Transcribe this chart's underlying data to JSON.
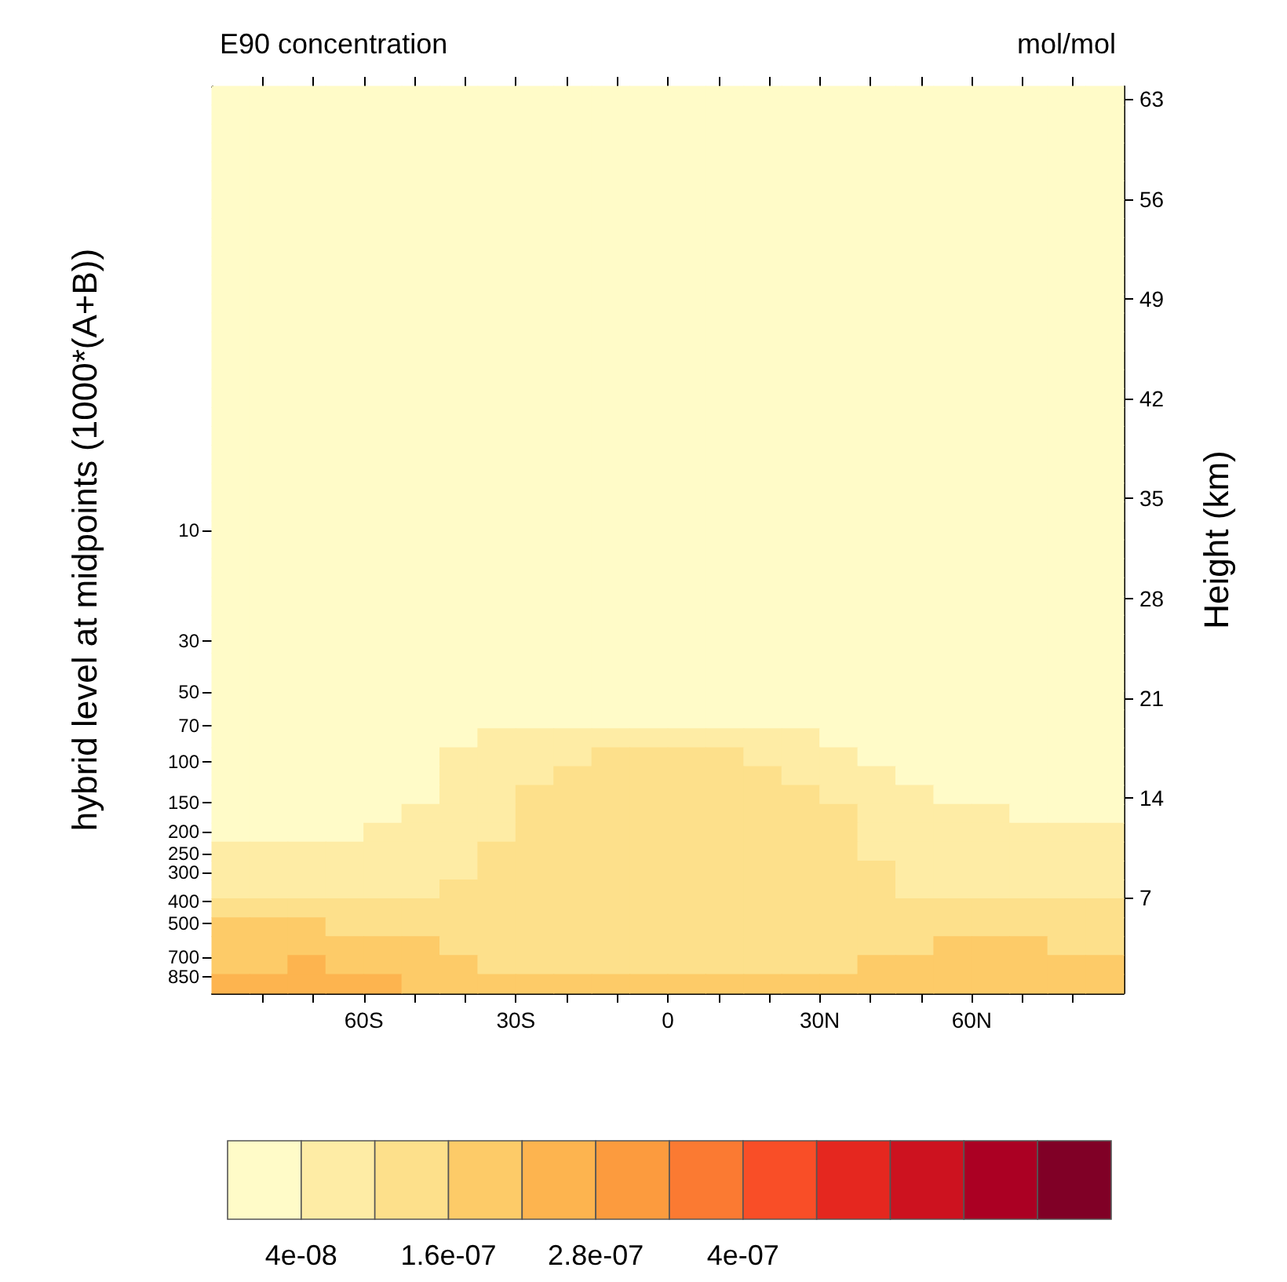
{
  "chart_data": {
    "type": "heatmap",
    "title": "E90 concentration",
    "subtitle": "mol/mol",
    "ylabel": "hybrid level at midpoints (1000*(A+B))",
    "y2label": "Height (km)",
    "xlim": [
      -90,
      90
    ],
    "xticks": [
      {
        "value": -80,
        "label": null
      },
      {
        "value": -70,
        "label": null
      },
      {
        "value": -60,
        "label": "60S"
      },
      {
        "value": -50,
        "label": null
      },
      {
        "value": -40,
        "label": null
      },
      {
        "value": -30,
        "label": "30S"
      },
      {
        "value": -20,
        "label": null
      },
      {
        "value": -10,
        "label": null
      },
      0,
      {
        "value": 10,
        "label": null
      },
      {
        "value": 20,
        "label": null
      },
      {
        "value": 30,
        "label": "30N"
      },
      {
        "value": 40,
        "label": null
      },
      {
        "value": 50,
        "label": null
      },
      {
        "value": 60,
        "label": "60N"
      },
      {
        "value": 70,
        "label": null
      },
      {
        "value": 80,
        "label": null
      }
    ],
    "log": "y",
    "ylim": [
      1000,
      0.12
    ],
    "yticks": [
      10,
      30,
      50,
      70,
      100,
      150,
      200,
      250,
      300,
      400,
      500,
      700,
      850
    ],
    "y2lim": [
      0.3,
      63.9
    ],
    "y2ticks": [
      7,
      14,
      21,
      28,
      35,
      42,
      49,
      56,
      63
    ],
    "clim": [
      -2e-08,
      7e-07
    ],
    "cticks": [
      {
        "value": 4e-08,
        "label": "4e-08"
      },
      {
        "value": 1e-07,
        "label": null
      },
      {
        "value": 1.6e-07,
        "label": "1.6e-07"
      },
      {
        "value": 2.2e-07,
        "label": null
      },
      {
        "value": 2.8e-07,
        "label": "2.8e-07"
      },
      {
        "value": 3.4e-07,
        "label": null
      },
      {
        "value": 4e-07,
        "label": "4e-07"
      },
      {
        "value": 4.6e-07,
        "label": null
      },
      {
        "value": 5.2e-07,
        "label": null
      },
      {
        "value": 5.8e-07,
        "label": null
      },
      {
        "value": 6.4e-07,
        "label": null
      }
    ],
    "colors": [
      "#fffbc8",
      "#feeca5",
      "#fde08b",
      "#fdcb68",
      "#fdb44f",
      "#fc9b3e",
      "#fb7a32",
      "#f94e27",
      "#e5271f",
      "#cd121f",
      "#ab0023",
      "#800026"
    ],
    "cells": [
      [
        2e-08,
        2e-08,
        2e-08,
        2e-08,
        2e-08,
        2e-08,
        2e-08,
        2e-08,
        2e-08,
        2e-08,
        2e-08,
        2e-08,
        2e-08,
        2e-08,
        2e-08,
        2e-08,
        2e-08,
        2e-08,
        2e-08,
        2e-08,
        2e-08,
        2e-08,
        2e-08,
        2e-08
      ],
      [
        2e-08,
        2e-08,
        2e-08,
        2e-08,
        2e-08,
        2e-08,
        2e-08,
        2e-08,
        2e-08,
        2e-08,
        2e-08,
        2e-08,
        2e-08,
        2e-08,
        2e-08,
        2e-08,
        2e-08,
        2e-08,
        2e-08,
        2e-08,
        2e-08,
        2e-08,
        2e-08,
        2e-08
      ],
      [
        2e-08,
        2e-08,
        2e-08,
        2e-08,
        2e-08,
        2e-08,
        2e-08,
        2e-08,
        2e-08,
        2e-08,
        2e-08,
        2e-08,
        2e-08,
        2e-08,
        2e-08,
        2e-08,
        2e-08,
        2e-08,
        2e-08,
        2e-08,
        2e-08,
        2e-08,
        2e-08,
        2e-08
      ],
      [
        2e-08,
        2e-08,
        2e-08,
        2e-08,
        2e-08,
        2e-08,
        2e-08,
        2e-08,
        2e-08,
        2e-08,
        2e-08,
        2e-08,
        2e-08,
        2e-08,
        2e-08,
        2e-08,
        2e-08,
        2e-08,
        2e-08,
        2e-08,
        2e-08,
        2e-08,
        2e-08,
        2e-08
      ],
      [
        2e-08,
        2e-08,
        2e-08,
        2e-08,
        2e-08,
        2e-08,
        2e-08,
        2e-08,
        2e-08,
        2e-08,
        2e-08,
        2e-08,
        2e-08,
        2e-08,
        2e-08,
        2e-08,
        2e-08,
        2e-08,
        2e-08,
        2e-08,
        2e-08,
        2e-08,
        2e-08,
        2e-08
      ],
      [
        2e-08,
        2e-08,
        2e-08,
        2e-08,
        2e-08,
        2e-08,
        2e-08,
        2e-08,
        2e-08,
        2e-08,
        2e-08,
        2e-08,
        2e-08,
        2e-08,
        2e-08,
        2e-08,
        2e-08,
        2e-08,
        2e-08,
        2e-08,
        2e-08,
        2e-08,
        2e-08,
        2e-08
      ],
      [
        2e-08,
        2e-08,
        2e-08,
        2e-08,
        2e-08,
        2e-08,
        2e-08,
        2e-08,
        2e-08,
        2e-08,
        2e-08,
        2e-08,
        2e-08,
        2e-08,
        2e-08,
        2e-08,
        2e-08,
        2e-08,
        2e-08,
        2e-08,
        2e-08,
        2e-08,
        2e-08,
        2e-08
      ],
      [
        2e-08,
        2e-08,
        2e-08,
        2e-08,
        2e-08,
        2e-08,
        2e-08,
        2e-08,
        2e-08,
        2e-08,
        2e-08,
        2e-08,
        2e-08,
        2e-08,
        2e-08,
        2e-08,
        2e-08,
        2e-08,
        2e-08,
        2e-08,
        2e-08,
        2e-08,
        2e-08,
        2e-08
      ],
      [
        2e-08,
        2e-08,
        2e-08,
        2e-08,
        2e-08,
        2e-08,
        2e-08,
        2e-08,
        2e-08,
        2e-08,
        2e-08,
        2e-08,
        2e-08,
        2e-08,
        2e-08,
        2e-08,
        2e-08,
        2e-08,
        2e-08,
        2e-08,
        2e-08,
        2e-08,
        2e-08,
        2e-08
      ],
      [
        2e-08,
        2e-08,
        2e-08,
        2e-08,
        2e-08,
        2e-08,
        2e-08,
        2e-08,
        2e-08,
        2e-08,
        2e-08,
        2e-08,
        2e-08,
        2e-08,
        2e-08,
        2e-08,
        2e-08,
        2e-08,
        2e-08,
        2e-08,
        2e-08,
        2e-08,
        2e-08,
        2e-08
      ],
      [
        2e-08,
        2e-08,
        2e-08,
        2e-08,
        2e-08,
        2e-08,
        2e-08,
        2e-08,
        2e-08,
        2e-08,
        2e-08,
        2e-08,
        2e-08,
        2e-08,
        2e-08,
        2e-08,
        2e-08,
        2e-08,
        2e-08,
        2e-08,
        2e-08,
        2e-08,
        2e-08,
        2e-08
      ],
      [
        2e-08,
        2e-08,
        2e-08,
        2e-08,
        2e-08,
        2e-08,
        2e-08,
        2e-08,
        2e-08,
        2e-08,
        2e-08,
        2e-08,
        2e-08,
        2e-08,
        2e-08,
        2e-08,
        2e-08,
        2e-08,
        2e-08,
        2e-08,
        2e-08,
        2e-08,
        2e-08,
        2e-08
      ],
      [
        2e-08,
        2e-08,
        2e-08,
        2e-08,
        2e-08,
        2e-08,
        2e-08,
        2e-08,
        2e-08,
        2e-08,
        2e-08,
        2e-08,
        2e-08,
        2e-08,
        2e-08,
        2e-08,
        2e-08,
        2e-08,
        2e-08,
        2e-08,
        2e-08,
        2e-08,
        2e-08,
        2e-08
      ],
      [
        2e-08,
        2e-08,
        2e-08,
        2e-08,
        2e-08,
        2e-08,
        2e-08,
        2e-08,
        2e-08,
        2e-08,
        2e-08,
        2e-08,
        2e-08,
        2e-08,
        2e-08,
        2e-08,
        2e-08,
        2e-08,
        2e-08,
        2e-08,
        2e-08,
        2e-08,
        2e-08,
        2e-08
      ],
      [
        2e-08,
        2e-08,
        2e-08,
        2e-08,
        2e-08,
        2e-08,
        2e-08,
        2e-08,
        2e-08,
        2e-08,
        2e-08,
        2e-08,
        2e-08,
        2e-08,
        2e-08,
        2e-08,
        2e-08,
        2e-08,
        2e-08,
        2e-08,
        2e-08,
        2e-08,
        2e-08,
        2e-08
      ],
      [
        2e-08,
        2e-08,
        2e-08,
        2e-08,
        2e-08,
        2e-08,
        2e-08,
        2e-08,
        2e-08,
        2e-08,
        2e-08,
        2e-08,
        2e-08,
        2e-08,
        2e-08,
        2e-08,
        2e-08,
        2e-08,
        2e-08,
        2e-08,
        2e-08,
        2e-08,
        2e-08,
        2e-08
      ],
      [
        2e-08,
        2e-08,
        2e-08,
        2e-08,
        2e-08,
        2e-08,
        2e-08,
        2e-08,
        2e-08,
        2e-08,
        2e-08,
        2e-08,
        2e-08,
        2e-08,
        2e-08,
        2e-08,
        2e-08,
        2e-08,
        2e-08,
        2e-08,
        2e-08,
        2e-08,
        2e-08,
        2e-08
      ],
      [
        2e-08,
        2e-08,
        2e-08,
        2e-08,
        2e-08,
        2e-08,
        2e-08,
        2e-08,
        2e-08,
        2e-08,
        2e-08,
        2e-08,
        2e-08,
        2e-08,
        2e-08,
        2e-08,
        2e-08,
        2e-08,
        2e-08,
        2e-08,
        2e-08,
        2e-08,
        2e-08,
        2e-08
      ],
      [
        2e-08,
        2e-08,
        2e-08,
        2e-08,
        2e-08,
        2e-08,
        2e-08,
        2e-08,
        2e-08,
        2e-08,
        2e-08,
        2e-08,
        2e-08,
        2e-08,
        2e-08,
        2e-08,
        2e-08,
        2e-08,
        2e-08,
        2e-08,
        2e-08,
        2e-08,
        2e-08,
        2e-08
      ],
      [
        2e-08,
        2e-08,
        2e-08,
        2e-08,
        2e-08,
        2e-08,
        2e-08,
        2e-08,
        2e-08,
        2e-08,
        2e-08,
        2e-08,
        2e-08,
        2e-08,
        2e-08,
        2e-08,
        2e-08,
        2e-08,
        2e-08,
        2e-08,
        2e-08,
        2e-08,
        2e-08,
        2e-08
      ],
      [
        2e-08,
        2e-08,
        2e-08,
        2e-08,
        2e-08,
        2e-08,
        2e-08,
        2e-08,
        2e-08,
        2e-08,
        2e-08,
        2e-08,
        2e-08,
        2e-08,
        2e-08,
        2e-08,
        2e-08,
        2e-08,
        2e-08,
        2e-08,
        2e-08,
        2e-08,
        2e-08,
        2e-08
      ],
      [
        2e-08,
        2e-08,
        2e-08,
        2e-08,
        2e-08,
        2e-08,
        2e-08,
        2e-08,
        2e-08,
        2e-08,
        2e-08,
        2e-08,
        2e-08,
        2e-08,
        2e-08,
        2e-08,
        2e-08,
        2e-08,
        2e-08,
        2e-08,
        2e-08,
        2e-08,
        2e-08,
        2e-08
      ],
      [
        2e-08,
        2e-08,
        2e-08,
        2e-08,
        2e-08,
        2e-08,
        2e-08,
        2e-08,
        2e-08,
        2e-08,
        2e-08,
        2e-08,
        2e-08,
        2e-08,
        2e-08,
        2e-08,
        2e-08,
        2e-08,
        2e-08,
        2e-08,
        2e-08,
        2e-08,
        2e-08,
        2e-08
      ],
      [
        2e-08,
        2e-08,
        2e-08,
        2e-08,
        2e-08,
        2e-08,
        2e-08,
        2e-08,
        2e-08,
        2e-08,
        2e-08,
        2e-08,
        2e-08,
        2e-08,
        2e-08,
        2e-08,
        2e-08,
        2e-08,
        2e-08,
        2e-08,
        2e-08,
        2e-08,
        2e-08,
        2e-08
      ],
      [
        2e-08,
        2e-08,
        2e-08,
        2e-08,
        2e-08,
        2e-08,
        2e-08,
        2e-08,
        2e-08,
        2e-08,
        2e-08,
        2e-08,
        2e-08,
        2e-08,
        2e-08,
        2e-08,
        2e-08,
        2e-08,
        2e-08,
        2e-08,
        2e-08,
        2e-08,
        2e-08,
        2e-08
      ],
      [
        2e-08,
        2e-08,
        2e-08,
        2e-08,
        2e-08,
        2e-08,
        2e-08,
        2e-08,
        2e-08,
        2e-08,
        2e-08,
        2e-08,
        2e-08,
        2e-08,
        2e-08,
        2e-08,
        2e-08,
        2e-08,
        2e-08,
        2e-08,
        2e-08,
        2e-08,
        2e-08,
        2e-08
      ],
      [
        2e-08,
        2e-08,
        2e-08,
        2e-08,
        2e-08,
        2e-08,
        2e-08,
        2e-08,
        2e-08,
        2e-08,
        2e-08,
        2e-08,
        2e-08,
        2e-08,
        2e-08,
        2e-08,
        2e-08,
        2e-08,
        2e-08,
        2e-08,
        2e-08,
        2e-08,
        2e-08,
        2e-08
      ],
      [
        2e-08,
        2e-08,
        2e-08,
        2e-08,
        2e-08,
        2e-08,
        2e-08,
        2e-08,
        2e-08,
        2e-08,
        2e-08,
        2e-08,
        2e-08,
        2e-08,
        2e-08,
        2e-08,
        2e-08,
        2e-08,
        2e-08,
        2e-08,
        2e-08,
        2e-08,
        2e-08,
        2e-08
      ],
      [
        2e-08,
        2e-08,
        2e-08,
        2e-08,
        2e-08,
        2e-08,
        2e-08,
        2e-08,
        2e-08,
        2e-08,
        2e-08,
        2e-08,
        2e-08,
        2e-08,
        2e-08,
        2e-08,
        2e-08,
        2e-08,
        2e-08,
        2e-08,
        2e-08,
        2e-08,
        2e-08,
        2e-08
      ],
      [
        2e-08,
        2e-08,
        2e-08,
        2e-08,
        2e-08,
        2e-08,
        2e-08,
        2e-08,
        2e-08,
        2e-08,
        2e-08,
        2e-08,
        2e-08,
        2e-08,
        2e-08,
        2e-08,
        2e-08,
        2e-08,
        2e-08,
        2e-08,
        2e-08,
        2e-08,
        2e-08,
        2e-08
      ],
      [
        2e-08,
        2e-08,
        2e-08,
        2e-08,
        2e-08,
        2e-08,
        2e-08,
        2e-08,
        2e-08,
        2e-08,
        2e-08,
        2e-08,
        2e-08,
        2e-08,
        2e-08,
        2e-08,
        2e-08,
        2e-08,
        2e-08,
        2e-08,
        2e-08,
        2e-08,
        2e-08,
        2e-08
      ],
      [
        2e-08,
        2e-08,
        2e-08,
        2e-08,
        2e-08,
        2e-08,
        2e-08,
        2e-08,
        2e-08,
        2e-08,
        2e-08,
        2e-08,
        2e-08,
        2e-08,
        2e-08,
        2e-08,
        2e-08,
        2e-08,
        2e-08,
        2e-08,
        2e-08,
        2e-08,
        2e-08,
        2e-08
      ],
      [
        2e-08,
        2e-08,
        2e-08,
        2e-08,
        2e-08,
        2e-08,
        2e-08,
        2e-08,
        2e-08,
        2e-08,
        2e-08,
        2e-08,
        2e-08,
        2e-08,
        2e-08,
        2e-08,
        2e-08,
        2e-08,
        2e-08,
        2e-08,
        2e-08,
        2e-08,
        2e-08,
        2e-08
      ],
      [
        2e-08,
        2e-08,
        2e-08,
        2e-08,
        2e-08,
        2e-08,
        2e-08,
        2e-08,
        2e-08,
        2e-08,
        2e-08,
        2e-08,
        2e-08,
        2e-08,
        2e-08,
        2e-08,
        2e-08,
        2e-08,
        2e-08,
        2e-08,
        2e-08,
        2e-08,
        2e-08,
        2e-08
      ],
      [
        2e-08,
        2e-08,
        2e-08,
        2e-08,
        2e-08,
        2e-08,
        2e-08,
        7e-08,
        7e-08,
        7e-08,
        7e-08,
        7e-08,
        7e-08,
        7e-08,
        7e-08,
        7e-08,
        2e-08,
        2e-08,
        2e-08,
        2e-08,
        2e-08,
        2e-08,
        2e-08,
        2e-08
      ],
      [
        2e-08,
        2e-08,
        2e-08,
        2e-08,
        2e-08,
        2e-08,
        7e-08,
        7e-08,
        7e-08,
        7e-08,
        1.3e-07,
        1.3e-07,
        1.3e-07,
        1.3e-07,
        7e-08,
        7e-08,
        7e-08,
        2e-08,
        2e-08,
        2e-08,
        2e-08,
        2e-08,
        2e-08,
        2e-08
      ],
      [
        2e-08,
        2e-08,
        2e-08,
        2e-08,
        2e-08,
        2e-08,
        7e-08,
        7e-08,
        7e-08,
        1.3e-07,
        1.3e-07,
        1.3e-07,
        1.3e-07,
        1.3e-07,
        1.3e-07,
        7e-08,
        7e-08,
        7e-08,
        2e-08,
        2e-08,
        2e-08,
        2e-08,
        2e-08,
        2e-08
      ],
      [
        2e-08,
        2e-08,
        2e-08,
        2e-08,
        2e-08,
        2e-08,
        7e-08,
        7e-08,
        1.3e-07,
        1.3e-07,
        1.3e-07,
        1.3e-07,
        1.3e-07,
        1.3e-07,
        1.3e-07,
        1.3e-07,
        7e-08,
        7e-08,
        7e-08,
        2e-08,
        2e-08,
        2e-08,
        2e-08,
        2e-08
      ],
      [
        2e-08,
        2e-08,
        2e-08,
        2e-08,
        2e-08,
        7e-08,
        7e-08,
        7e-08,
        1.3e-07,
        1.3e-07,
        1.3e-07,
        1.3e-07,
        1.3e-07,
        1.3e-07,
        1.3e-07,
        1.3e-07,
        1.3e-07,
        7e-08,
        7e-08,
        7e-08,
        7e-08,
        2e-08,
        2e-08,
        2e-08
      ],
      [
        2e-08,
        2e-08,
        2e-08,
        2e-08,
        7e-08,
        7e-08,
        7e-08,
        7e-08,
        1.3e-07,
        1.3e-07,
        1.3e-07,
        1.3e-07,
        1.3e-07,
        1.3e-07,
        1.3e-07,
        1.3e-07,
        1.3e-07,
        7e-08,
        7e-08,
        7e-08,
        7e-08,
        7e-08,
        7e-08,
        7e-08
      ],
      [
        7e-08,
        7e-08,
        7e-08,
        7e-08,
        7e-08,
        7e-08,
        7e-08,
        1.3e-07,
        1.3e-07,
        1.3e-07,
        1.3e-07,
        1.3e-07,
        1.3e-07,
        1.3e-07,
        1.3e-07,
        1.3e-07,
        1.3e-07,
        7e-08,
        7e-08,
        7e-08,
        7e-08,
        7e-08,
        7e-08,
        7e-08
      ],
      [
        7e-08,
        7e-08,
        7e-08,
        7e-08,
        7e-08,
        7e-08,
        7e-08,
        1.3e-07,
        1.3e-07,
        1.3e-07,
        1.3e-07,
        1.3e-07,
        1.3e-07,
        1.3e-07,
        1.3e-07,
        1.3e-07,
        1.3e-07,
        1.3e-07,
        7e-08,
        7e-08,
        7e-08,
        7e-08,
        7e-08,
        7e-08
      ],
      [
        7e-08,
        7e-08,
        7e-08,
        7e-08,
        7e-08,
        7e-08,
        1.3e-07,
        1.3e-07,
        1.3e-07,
        1.3e-07,
        1.3e-07,
        1.3e-07,
        1.3e-07,
        1.3e-07,
        1.3e-07,
        1.3e-07,
        1.3e-07,
        1.3e-07,
        7e-08,
        7e-08,
        7e-08,
        7e-08,
        7e-08,
        7e-08
      ],
      [
        1.3e-07,
        1.3e-07,
        1.3e-07,
        1.3e-07,
        1.3e-07,
        1.3e-07,
        1.3e-07,
        1.3e-07,
        1.3e-07,
        1.3e-07,
        1.3e-07,
        1.3e-07,
        1.3e-07,
        1.3e-07,
        1.3e-07,
        1.3e-07,
        1.3e-07,
        1.3e-07,
        1.3e-07,
        1.3e-07,
        1.3e-07,
        1.3e-07,
        1.3e-07,
        1.3e-07
      ],
      [
        1.9e-07,
        1.9e-07,
        1.9e-07,
        1.3e-07,
        1.3e-07,
        1.3e-07,
        1.3e-07,
        1.3e-07,
        1.3e-07,
        1.3e-07,
        1.3e-07,
        1.3e-07,
        1.3e-07,
        1.3e-07,
        1.3e-07,
        1.3e-07,
        1.3e-07,
        1.3e-07,
        1.3e-07,
        1.3e-07,
        1.3e-07,
        1.3e-07,
        1.3e-07,
        1.3e-07
      ],
      [
        1.9e-07,
        1.9e-07,
        1.9e-07,
        1.9e-07,
        1.9e-07,
        1.9e-07,
        1.3e-07,
        1.3e-07,
        1.3e-07,
        1.3e-07,
        1.3e-07,
        1.3e-07,
        1.3e-07,
        1.3e-07,
        1.3e-07,
        1.3e-07,
        1.3e-07,
        1.3e-07,
        1.3e-07,
        1.9e-07,
        1.9e-07,
        1.9e-07,
        1.3e-07,
        1.3e-07
      ],
      [
        1.9e-07,
        1.9e-07,
        2.5e-07,
        1.9e-07,
        1.9e-07,
        1.9e-07,
        1.9e-07,
        1.3e-07,
        1.3e-07,
        1.3e-07,
        1.3e-07,
        1.3e-07,
        1.3e-07,
        1.3e-07,
        1.3e-07,
        1.3e-07,
        1.3e-07,
        1.9e-07,
        1.9e-07,
        1.9e-07,
        1.9e-07,
        1.9e-07,
        1.9e-07,
        1.9e-07
      ],
      [
        2.5e-07,
        2.5e-07,
        2.5e-07,
        2.5e-07,
        2.5e-07,
        1.9e-07,
        1.9e-07,
        1.9e-07,
        1.9e-07,
        1.9e-07,
        1.9e-07,
        1.9e-07,
        1.9e-07,
        1.9e-07,
        1.9e-07,
        1.9e-07,
        1.9e-07,
        1.9e-07,
        1.9e-07,
        1.9e-07,
        1.9e-07,
        1.9e-07,
        1.9e-07,
        1.9e-07
      ]
    ]
  }
}
